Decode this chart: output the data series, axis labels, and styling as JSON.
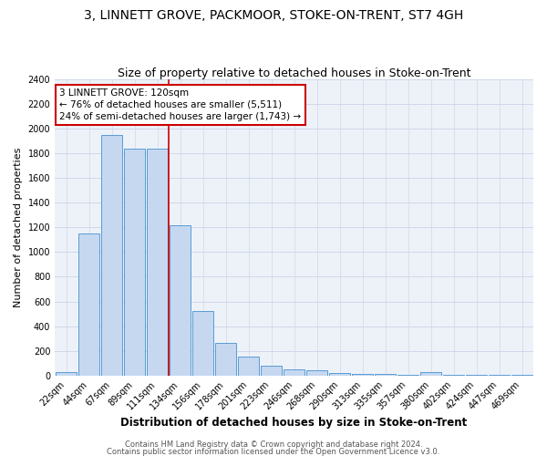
{
  "title": "3, LINNETT GROVE, PACKMOOR, STOKE-ON-TRENT, ST7 4GH",
  "subtitle": "Size of property relative to detached houses in Stoke-on-Trent",
  "xlabel": "Distribution of detached houses by size in Stoke-on-Trent",
  "ylabel": "Number of detached properties",
  "categories": [
    "22sqm",
    "44sqm",
    "67sqm",
    "89sqm",
    "111sqm",
    "134sqm",
    "156sqm",
    "178sqm",
    "201sqm",
    "223sqm",
    "246sqm",
    "268sqm",
    "290sqm",
    "313sqm",
    "335sqm",
    "357sqm",
    "380sqm",
    "402sqm",
    "424sqm",
    "447sqm",
    "469sqm"
  ],
  "values": [
    30,
    1150,
    1950,
    1840,
    1840,
    1220,
    520,
    265,
    155,
    80,
    50,
    40,
    20,
    15,
    10,
    5,
    30,
    5,
    5,
    5,
    5
  ],
  "bar_color": "#c5d8f0",
  "bar_edge_color": "#5b9bd5",
  "annotation_text": "3 LINNETT GROVE: 120sqm\n← 76% of detached houses are smaller (5,511)\n24% of semi-detached houses are larger (1,743) →",
  "annotation_box_color": "#ffffff",
  "annotation_box_edge_color": "#cc0000",
  "ylim": [
    0,
    2400
  ],
  "yticks": [
    0,
    200,
    400,
    600,
    800,
    1000,
    1200,
    1400,
    1600,
    1800,
    2000,
    2200,
    2400
  ],
  "grid_color": "#d0d8e8",
  "bg_color": "#edf2f9",
  "footer_line1": "Contains HM Land Registry data © Crown copyright and database right 2024.",
  "footer_line2": "Contains public sector information licensed under the Open Government Licence v3.0.",
  "title_fontsize": 10,
  "subtitle_fontsize": 9,
  "xlabel_fontsize": 8.5,
  "ylabel_fontsize": 8,
  "tick_fontsize": 7,
  "annotation_fontsize": 7.5,
  "footer_fontsize": 6
}
